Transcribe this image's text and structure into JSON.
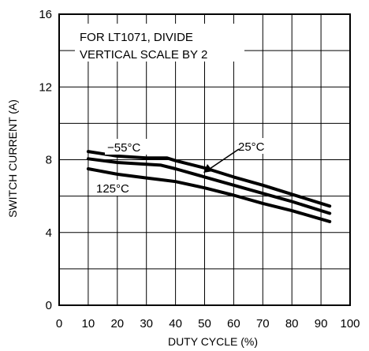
{
  "chart_data": {
    "type": "line",
    "title": "",
    "xlabel": "DUTY CYCLE (%)",
    "ylabel": "SWITCH CURRENT (A)",
    "xlim": [
      0,
      100
    ],
    "ylim": [
      0,
      16
    ],
    "x_ticks": [
      "0",
      "10",
      "20",
      "30",
      "40",
      "50",
      "60",
      "70",
      "80",
      "90",
      "100"
    ],
    "y_ticks": [
      "0",
      "4",
      "8",
      "12",
      "16"
    ],
    "grid": true,
    "annotation": [
      "FOR LT1071, DIVIDE",
      "VERTICAL SCALE BY 2"
    ],
    "series": [
      {
        "name": "−55°C",
        "x": [
          10,
          20,
          30,
          37,
          40,
          50,
          60,
          70,
          80,
          93
        ],
        "y": [
          8.45,
          8.2,
          8.1,
          8.1,
          7.95,
          7.55,
          7.05,
          6.6,
          6.1,
          5.45
        ]
      },
      {
        "name": "25°C",
        "x": [
          10,
          20,
          30,
          35,
          40,
          50,
          60,
          70,
          80,
          93
        ],
        "y": [
          8.05,
          7.85,
          7.75,
          7.7,
          7.5,
          7.05,
          6.6,
          6.15,
          5.7,
          5.05
        ]
      },
      {
        "name": "125°C",
        "x": [
          10,
          20,
          30,
          35,
          40,
          50,
          60,
          70,
          80,
          93
        ],
        "y": [
          7.5,
          7.2,
          7.0,
          6.9,
          6.8,
          6.45,
          6.05,
          5.6,
          5.2,
          4.6
        ]
      }
    ],
    "colors": {
      "line": "#000000",
      "grid": "#000000",
      "background": "#ffffff"
    }
  }
}
